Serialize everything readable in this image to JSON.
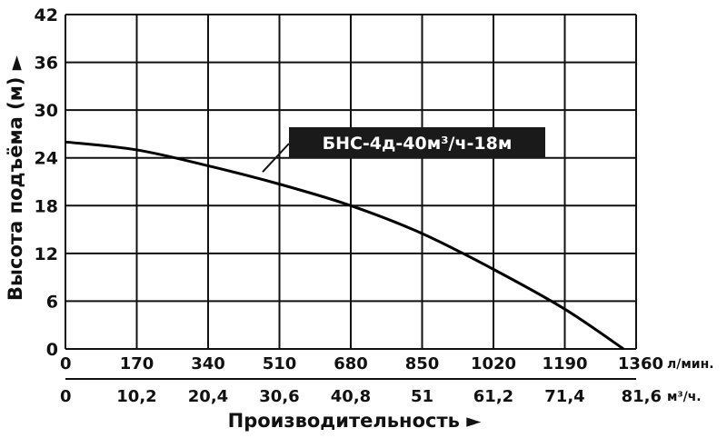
{
  "chart_data": {
    "type": "line",
    "ylabel": "Высота подъёма (м) ►",
    "xlabel": "Производительность ►",
    "x_lpm_ticks": [
      "0",
      "170",
      "340",
      "510",
      "680",
      "850",
      "1020",
      "1190",
      "1360"
    ],
    "x_m3h_ticks": [
      "0",
      "10,2",
      "20,4",
      "30,6",
      "40,8",
      "51",
      "61,2",
      "71,4",
      "81,6"
    ],
    "x_lpm_unit": "л/мин.",
    "x_m3h_unit": "м³/ч.",
    "y_ticks": [
      "0",
      "6",
      "12",
      "18",
      "24",
      "30",
      "36",
      "42"
    ],
    "xlim_lpm": [
      0,
      1360
    ],
    "ylim": [
      0,
      42
    ],
    "grid": true,
    "series": [
      {
        "name": "БНС-4д-40м³/ч-18м",
        "x_lpm": [
          0,
          170,
          340,
          510,
          680,
          850,
          1020,
          1190,
          1330
        ],
        "y": [
          26,
          25,
          23,
          20.7,
          18,
          14.5,
          10,
          5,
          0
        ],
        "color": "#000000"
      }
    ]
  }
}
